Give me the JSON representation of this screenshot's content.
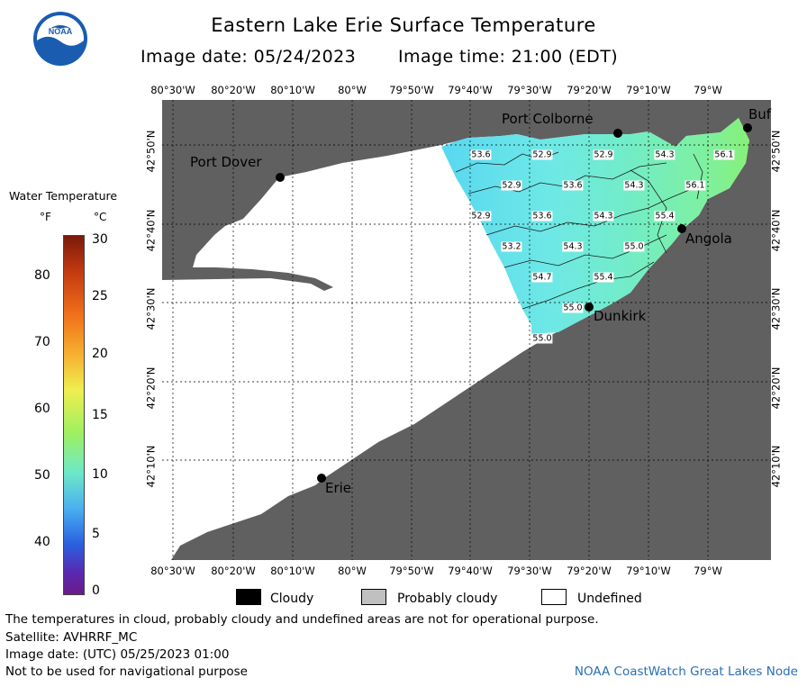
{
  "header": {
    "title": "Eastern Lake Erie Surface Temperature",
    "image_date": "Image date: 05/24/2023",
    "image_time": "Image time: 21:00 (EDT)"
  },
  "logo": {
    "text": "NOAA",
    "icon": "noaa-logo"
  },
  "map": {
    "lon_labels": [
      "80°30'W",
      "80°20'W",
      "80°10'W",
      "80°W",
      "79°50'W",
      "79°40'W",
      "79°30'W",
      "79°20'W",
      "79°10'W",
      "79°W"
    ],
    "lat_labels": [
      "42°50'N",
      "42°40'N",
      "42°30'N",
      "42°20'N",
      "42°10'N"
    ],
    "places": [
      {
        "name": "Port Dover"
      },
      {
        "name": "Port Colborne"
      },
      {
        "name": "Buf"
      },
      {
        "name": "Angola"
      },
      {
        "name": "Dunkirk"
      },
      {
        "name": "Erie"
      }
    ],
    "temperature_labels": [
      "53.6",
      "52.9",
      "52.9",
      "54.3",
      "56.1",
      "52.9",
      "53.6",
      "54.3",
      "56.1",
      "52.9",
      "53.6",
      "54.3",
      "55.4",
      "53.2",
      "54.3",
      "55.0",
      "54.7",
      "55.4",
      "55.0",
      "55.0"
    ],
    "colors": {
      "land": "#606060",
      "undefined": "#ffffff",
      "grid": "#000000"
    }
  },
  "legend": {
    "title": "Water Temperature",
    "unit_f": "°F",
    "unit_c": "°C",
    "f_ticks": [
      "80",
      "70",
      "60",
      "50",
      "40"
    ],
    "c_ticks": [
      "30",
      "25",
      "20",
      "15",
      "10",
      "5",
      "0"
    ],
    "key": [
      {
        "label": "Cloudy",
        "color": "#000000"
      },
      {
        "label": "Probably cloudy",
        "color": "#c0c0c0"
      },
      {
        "label": "Undefined",
        "color": "#ffffff"
      }
    ]
  },
  "footer": {
    "disclaimer": "The temperatures in cloud, probably cloudy and undefined areas are not for operational purpose.",
    "satellite": "Satellite: AVHRRF_MC",
    "utc_date": "Image date: (UTC) 05/25/2023  01:00",
    "nav_warning": "Not to be used for navigational purpose",
    "credit": "NOAA CoastWatch Great Lakes Node"
  }
}
